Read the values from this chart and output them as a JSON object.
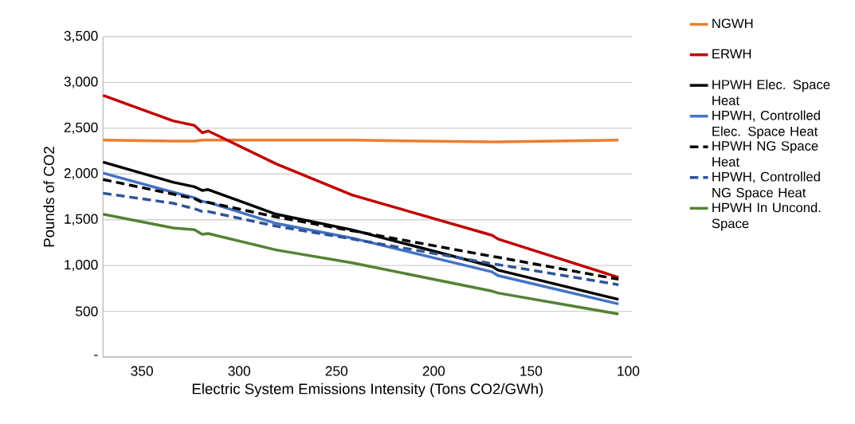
{
  "chart_data": {
    "type": "line",
    "xlabel": "Electric System Emissions Intensity (Tons CO2/GWh)",
    "ylabel": "Pounds of CO2",
    "x": [
      370,
      334,
      323,
      319,
      316,
      281,
      242,
      170,
      167,
      105
    ],
    "series": [
      {
        "name": "NGWH",
        "color": "#ed7d31",
        "values": [
          2370,
          2360,
          2360,
          2370,
          2370,
          2370,
          2370,
          2350,
          2350,
          2370
        ]
      },
      {
        "name": "ERWH",
        "color": "#c00000",
        "values": [
          2860,
          2580,
          2530,
          2450,
          2470,
          2110,
          1770,
          1330,
          1290,
          870
        ]
      },
      {
        "name": "HPWH Elec. Space Heat",
        "color": "#000000",
        "values": [
          2130,
          1910,
          1860,
          1820,
          1830,
          1560,
          1390,
          990,
          950,
          630
        ]
      },
      {
        "name": "HPWH, Controlled Elec. Space Heat",
        "color": "#4472c4",
        "values": [
          2010,
          1800,
          1740,
          1700,
          1690,
          1460,
          1300,
          930,
          890,
          580
        ]
      },
      {
        "name": "HPWH NG Space Heat",
        "color": "#000000",
        "line_style": "dashed",
        "values": [
          1940,
          1780,
          1730,
          1690,
          1690,
          1530,
          1380,
          1100,
          1090,
          850
        ]
      },
      {
        "name": "HPWH, Controlled NG Space Heat",
        "color": "#2f5597",
        "line_style": "dashed",
        "values": [
          1790,
          1680,
          1620,
          1590,
          1590,
          1430,
          1290,
          1020,
          1010,
          790
        ]
      },
      {
        "name": "HPWH In Uncond. Space",
        "color": "#548235",
        "values": [
          1560,
          1410,
          1390,
          1340,
          1350,
          1170,
          1030,
          720,
          700,
          470
        ]
      }
    ],
    "xlim": [
      370,
      98
    ],
    "xticks": [
      350,
      300,
      250,
      200,
      150,
      100
    ],
    "ylim": [
      0,
      3500
    ],
    "yticks": [
      {
        "value": 0,
        "label": "-"
      },
      500,
      {
        "value": 1000,
        "label": "1,000"
      },
      {
        "value": 1500,
        "label": "1,500"
      },
      {
        "value": 2000,
        "label": "2,000"
      },
      {
        "value": 2500,
        "label": "2,500"
      },
      {
        "value": 3000,
        "label": "3,000"
      },
      {
        "value": 3500,
        "label": "3,500"
      }
    ],
    "grid": "y",
    "legend": "right"
  }
}
